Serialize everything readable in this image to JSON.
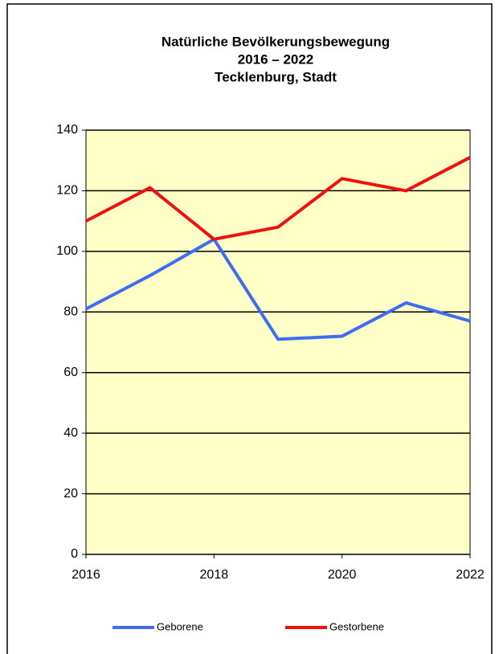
{
  "chart_data": {
    "type": "line",
    "title": [
      "Natürliche Bevölkerungsbewegung",
      "2016 – 2022",
      "Tecklenburg, Stadt"
    ],
    "x": [
      2016,
      2017,
      2018,
      2019,
      2020,
      2021,
      2022
    ],
    "series": [
      {
        "name": "Geborene",
        "color": "#3f6df0",
        "values": [
          81,
          92,
          104,
          71,
          72,
          83,
          77
        ]
      },
      {
        "name": "Gestorbene",
        "color": "#f01010",
        "values": [
          110,
          121,
          104,
          108,
          124,
          120,
          131
        ]
      }
    ],
    "xlim": [
      2016,
      2022
    ],
    "xticks": [
      2016,
      2018,
      2020,
      2022
    ],
    "ylim": [
      0,
      140
    ],
    "yticks": [
      0,
      20,
      40,
      60,
      80,
      100,
      120,
      140
    ],
    "grid": true,
    "legend": "bottom",
    "plot_background": "#ffffc8"
  }
}
